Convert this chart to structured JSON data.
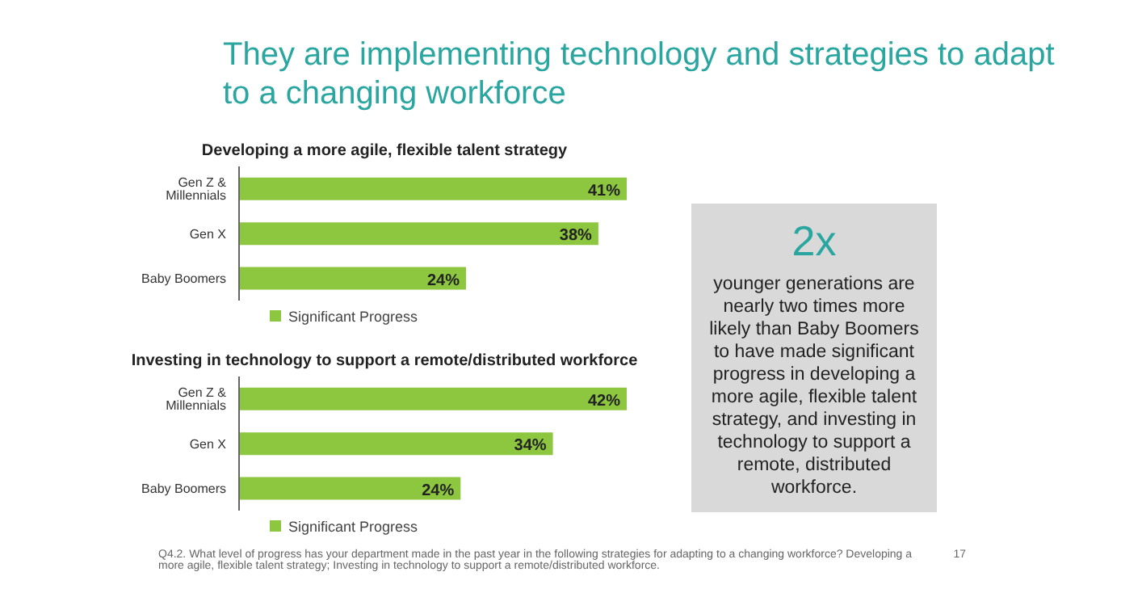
{
  "chart_data": [
    {
      "type": "bar",
      "orientation": "horizontal",
      "title": "They are implementing technology and strategies to adapt to a changing workforce",
      "subtitle": "Developing a more agile, flexible talent strategy",
      "categories": [
        "Gen Z & Millennials",
        "Gen X",
        "Baby Boomers"
      ],
      "series": [
        {
          "name": "Significant Progress",
          "color": "#8dc63f",
          "values": [
            41,
            38,
            24
          ],
          "value_labels": [
            "41%",
            "38%",
            "24%"
          ]
        }
      ],
      "legend": "bottom"
    },
    {
      "type": "bar",
      "orientation": "horizontal",
      "title": "Investing in technology to support a remote/distributed workforce",
      "categories": [
        "Gen Z & Millennials",
        "Gen X",
        "Baby Boomers"
      ],
      "series": [
        {
          "name": "Significant Progress",
          "color": "#8dc63f",
          "values": [
            42,
            34,
            24
          ],
          "value_labels": [
            "42%",
            "34%",
            "24%"
          ]
        }
      ],
      "legend": "bottom",
      "annotations": [
        "Q4.2. What level of progress has your department made in the past year in the following strategies for adapting to a changing workforce? Developing a more agile, flexible talent strategy; Investing in technology to support a remote/distributed workforce.",
        "17"
      ]
    },
    {
      "type": "other",
      "title": "2x",
      "annotations": [
        "younger generations are nearly two times more likely than Baby Boomers to have made significant progress in developing a more agile, flexible talent strategy, and investing in technology to support a remote, distributed workforce."
      ]
    }
  ]
}
